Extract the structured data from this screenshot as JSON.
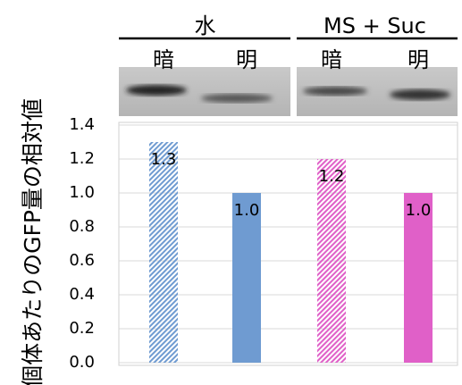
{
  "chart_data": {
    "type": "bar",
    "y_label": "個体あたりのGFP量の相対値",
    "groups": [
      "水",
      "MS + Suc"
    ],
    "categories": [
      "暗",
      "明",
      "暗",
      "明"
    ],
    "values": [
      1.3,
      1.0,
      1.2,
      1.0
    ],
    "value_labels": [
      "1.3",
      "1.0",
      "1.2",
      "1.0"
    ],
    "colors": [
      "#6f9bd1",
      "#6f9bd1",
      "#e060c8",
      "#e060c8"
    ],
    "hatched": [
      true,
      false,
      true,
      false
    ],
    "ylim": [
      0,
      1.4
    ],
    "yticks": [
      {
        "value": 0,
        "label": "0.0"
      },
      {
        "value": 0.2,
        "label": "0.2"
      },
      {
        "value": 0.4,
        "label": "0.4"
      },
      {
        "value": 0.6,
        "label": "0.6"
      },
      {
        "value": 0.8,
        "label": "0.8"
      },
      {
        "value": 1.0,
        "label": "1.0"
      },
      {
        "value": 1.2,
        "label": "1.2"
      },
      {
        "value": 1.4,
        "label": "1.4"
      }
    ],
    "grid": true
  }
}
